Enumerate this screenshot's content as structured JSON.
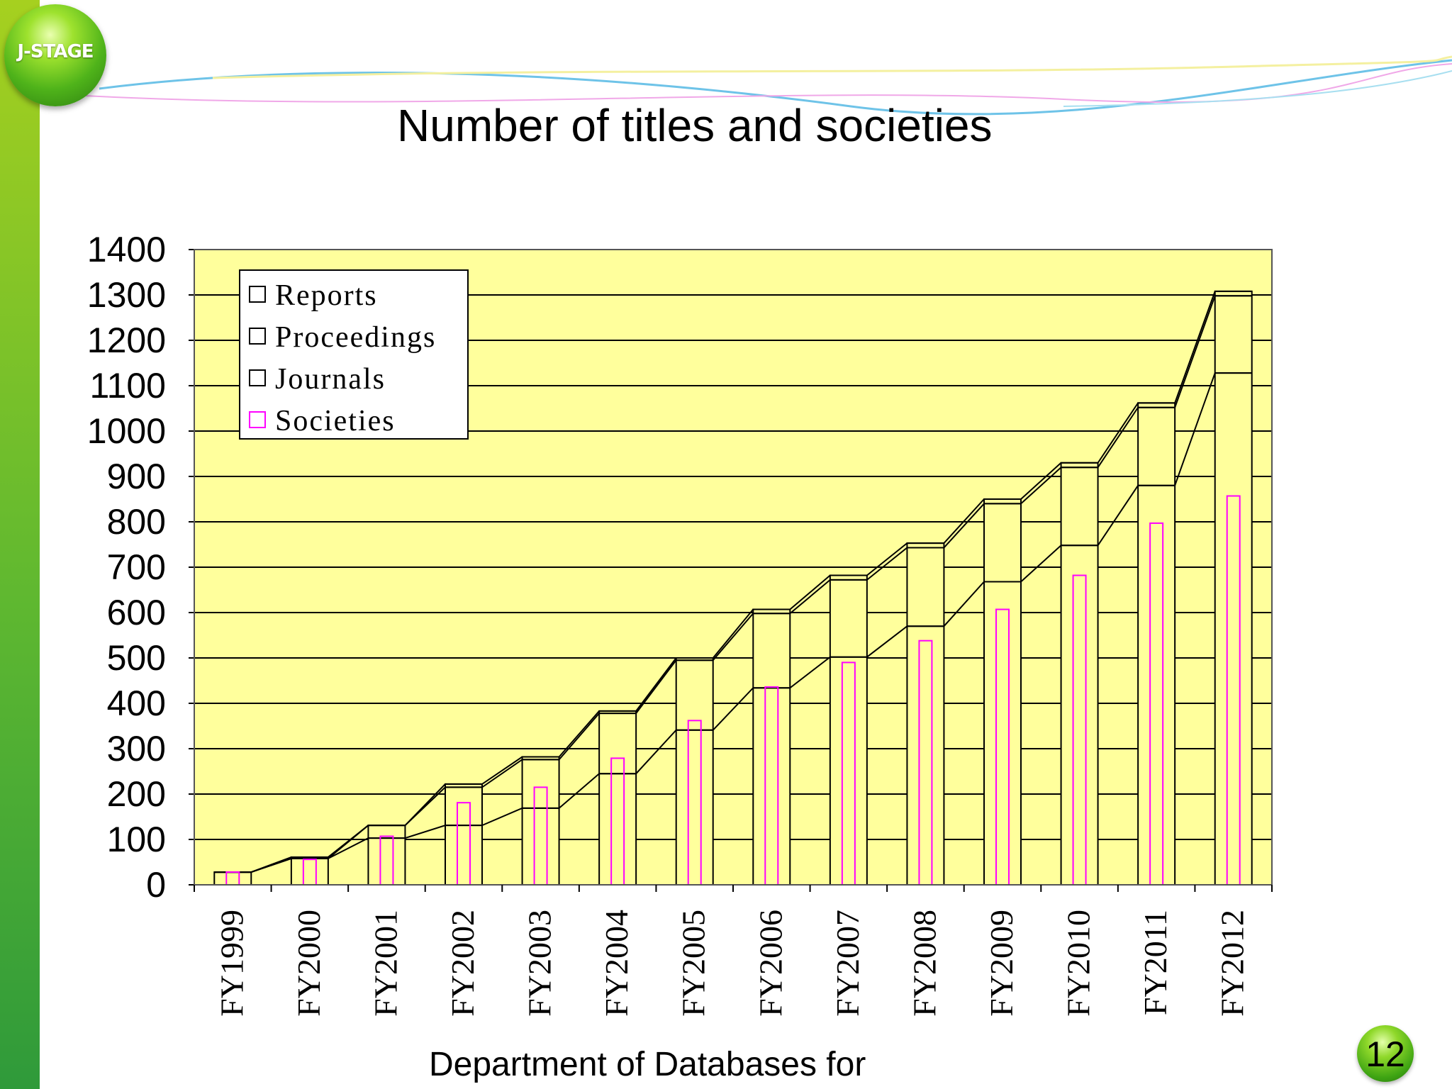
{
  "slide": {
    "title": "Number of titles and societies",
    "footer": "Department of Databases for",
    "page_number": "12",
    "logo_text": "J-STAGE"
  },
  "colors": {
    "plot_background": "#ffff9c",
    "societies": "#ff00ff",
    "lines": "#000000",
    "side_bar": "#6cbf2a"
  },
  "chart_data": {
    "type": "area",
    "title": "",
    "xlabel": "",
    "ylabel": "",
    "categories": [
      "FY1999",
      "FY2000",
      "FY2001",
      "FY2002",
      "FY2003",
      "FY2004",
      "FY2005",
      "FY2006",
      "FY2007",
      "FY2008",
      "FY2009",
      "FY2010",
      "FY2011",
      "FY2012"
    ],
    "ylim": [
      0,
      1400
    ],
    "yticks": [
      0,
      100,
      200,
      300,
      400,
      500,
      600,
      700,
      800,
      900,
      1000,
      1100,
      1200,
      1300,
      1400
    ],
    "grid": true,
    "legend_position": "top-left",
    "legend": [
      "Reports",
      "Proceedings",
      "Journals",
      "Societies"
    ],
    "stacked_series": [
      {
        "name": "Journals",
        "values": [
          28,
          58,
          103,
          131,
          169,
          245,
          341,
          434,
          502,
          570,
          668,
          748,
          880,
          1128
        ]
      },
      {
        "name": "Proceedings",
        "values": [
          0,
          0,
          28,
          84,
          107,
          133,
          154,
          164,
          170,
          173,
          172,
          172,
          172,
          170
        ]
      },
      {
        "name": "Reports",
        "values": [
          0,
          3,
          0,
          7,
          6,
          5,
          5,
          9,
          10,
          10,
          10,
          10,
          10,
          10
        ]
      }
    ],
    "bar_series": {
      "name": "Societies",
      "values": [
        28,
        56,
        107,
        181,
        215,
        279,
        362,
        436,
        490,
        538,
        607,
        682,
        797,
        857
      ]
    }
  }
}
